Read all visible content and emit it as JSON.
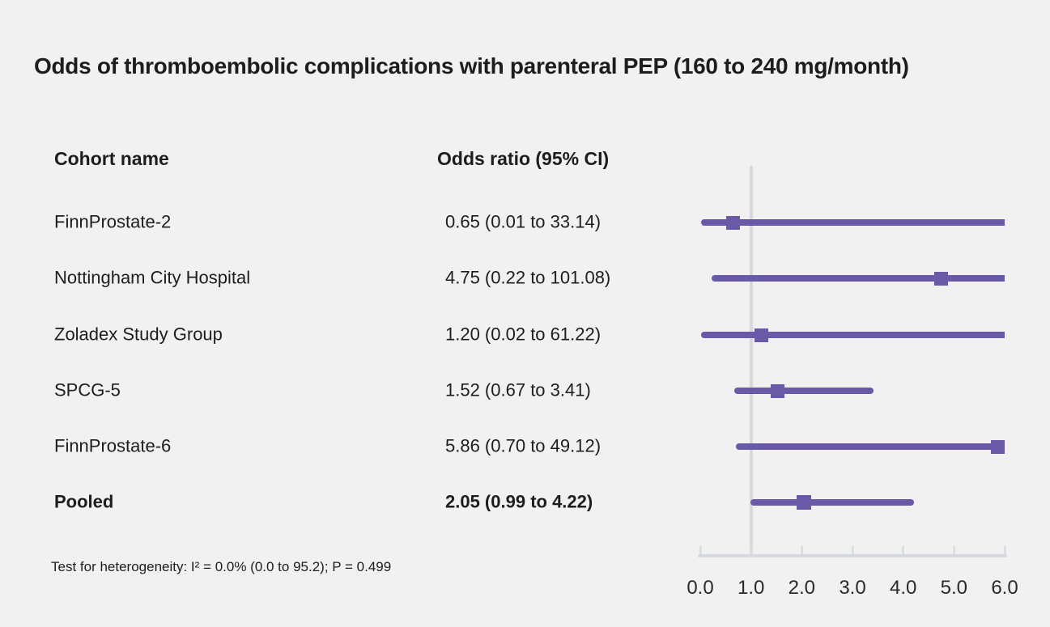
{
  "figure": {
    "title": "Odds of thromboembolic complications with parenteral PEP (160 to 240 mg/month)",
    "columns": {
      "cohort": "Cohort name",
      "odds_ratio": "Odds ratio (95% CI)"
    },
    "footnote": "Test for heterogeneity: I² = 0.0% (0.0 to 95.2); P = 0.499"
  },
  "rows": [
    {
      "cohort": "FinnProstate-2",
      "or_text": "0.65 (0.01 to 33.14)",
      "emphasis": false
    },
    {
      "cohort": "Nottingham City Hospital",
      "or_text": "4.75 (0.22 to 101.08)",
      "emphasis": false
    },
    {
      "cohort": "Zoladex Study Group",
      "or_text": "1.20 (0.02 to 61.22)",
      "emphasis": false
    },
    {
      "cohort": "SPCG-5",
      "or_text": "1.52 (0.67 to 3.41)",
      "emphasis": false
    },
    {
      "cohort": "FinnProstate-6",
      "or_text": "5.86 (0.70 to 49.12)",
      "emphasis": false
    },
    {
      "cohort": "Pooled",
      "or_text": "2.05 (0.99 to 4.22)",
      "emphasis": true
    }
  ],
  "chart_data": {
    "type": "scatter",
    "variant": "forest-plot",
    "title": "Odds of thromboembolic complications with parenteral PEP (160 to 240 mg/month)",
    "xlabel": "",
    "ylabel": "",
    "xlim": [
      0.0,
      6.0
    ],
    "x_tick_values": [
      0.0,
      1.0,
      2.0,
      3.0,
      4.0,
      5.0,
      6.0
    ],
    "x_tick_labels": [
      "0.0",
      "1.0",
      "2.0",
      "3.0",
      "4.0",
      "5.0",
      "6.0"
    ],
    "reference_line_x": 1.0,
    "grid": false,
    "legend": false,
    "series": [
      {
        "name": "FinnProstate-2",
        "or": 0.65,
        "ci_low": 0.01,
        "ci_high": 33.14,
        "pooled": false
      },
      {
        "name": "Nottingham City Hospital",
        "or": 4.75,
        "ci_low": 0.22,
        "ci_high": 101.08,
        "pooled": false
      },
      {
        "name": "Zoladex Study Group",
        "or": 1.2,
        "ci_low": 0.02,
        "ci_high": 61.22,
        "pooled": false
      },
      {
        "name": "SPCG-5",
        "or": 1.52,
        "ci_low": 0.67,
        "ci_high": 3.41,
        "pooled": false
      },
      {
        "name": "FinnProstate-6",
        "or": 5.86,
        "ci_low": 0.7,
        "ci_high": 49.12,
        "pooled": false
      },
      {
        "name": "Pooled",
        "or": 2.05,
        "ci_low": 0.99,
        "ci_high": 4.22,
        "pooled": true
      }
    ],
    "heterogeneity_note": "Test for heterogeneity: I² = 0.0% (0.0 to 95.2); P = 0.499"
  },
  "colors": {
    "background": "#f2f1f1",
    "text": "#1d1d1d",
    "series": "#6a59a6",
    "axis_line": "#d6dae0",
    "tick_mark": "#dbdee3"
  }
}
